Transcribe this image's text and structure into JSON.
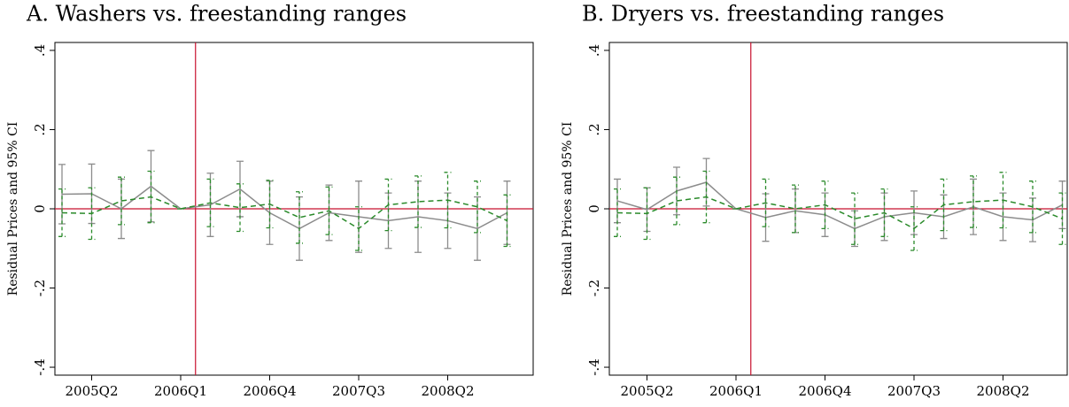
{
  "chart_data": [
    {
      "type": "line",
      "title": "A. Washers vs. freestanding ranges",
      "y_label": "Residual Prices and 95% CI",
      "categories": [
        null,
        "2005Q2",
        null,
        null,
        "2006Q1",
        null,
        null,
        "2006Q4",
        null,
        null,
        "2007Q3",
        null,
        null,
        "2008Q2",
        null,
        null
      ],
      "ylim": [
        -0.42,
        0.42
      ],
      "yticks": [
        {
          "value": -0.4,
          "label": "-.4"
        },
        {
          "value": -0.2,
          "label": "-.2"
        },
        0,
        {
          "value": 0.2,
          "label": ".2"
        },
        {
          "value": 0.4,
          "label": ".4"
        }
      ],
      "series": [
        {
          "color": "#8c8c8c",
          "style": "solid",
          "values": [
            0.037,
            0.038,
            0.0,
            0.057,
            0.0,
            0.01,
            0.05,
            -0.01,
            -0.05,
            -0.01,
            -0.02,
            -0.03,
            -0.02,
            -0.03,
            -0.05,
            -0.01
          ],
          "errors": [
            0.075,
            0.075,
            0.075,
            0.09,
            0.0,
            0.08,
            0.07,
            0.08,
            0.08,
            0.07,
            0.09,
            0.07,
            0.09,
            0.07,
            0.08,
            0.08
          ]
        },
        {
          "color": "#2a8a2a",
          "style": "dashed",
          "values": [
            -0.01,
            -0.012,
            0.02,
            0.03,
            0.0,
            0.015,
            0.003,
            0.012,
            -0.022,
            -0.005,
            -0.05,
            0.01,
            0.018,
            0.022,
            0.005,
            -0.03
          ],
          "errors": [
            0.06,
            0.065,
            0.06,
            0.065,
            0.0,
            0.06,
            0.06,
            0.06,
            0.065,
            0.06,
            0.055,
            0.065,
            0.065,
            0.07,
            0.065,
            0.065
          ]
        }
      ]
    },
    {
      "type": "line",
      "title": "B. Dryers vs. freestanding ranges",
      "y_label": "Residual Prices and 95% CI",
      "categories": [
        null,
        "2005Q2",
        null,
        null,
        "2006Q1",
        null,
        null,
        "2006Q4",
        null,
        null,
        "2007Q3",
        null,
        null,
        "2008Q2",
        null,
        null
      ],
      "ylim": [
        -0.42,
        0.42
      ],
      "yticks": [
        {
          "value": -0.4,
          "label": "-.4"
        },
        {
          "value": -0.2,
          "label": "-.2"
        },
        0,
        {
          "value": 0.2,
          "label": ".2"
        },
        {
          "value": 0.4,
          "label": ".4"
        }
      ],
      "series": [
        {
          "color": "#8c8c8c",
          "style": "solid",
          "values": [
            0.02,
            -0.002,
            0.045,
            0.067,
            0.0,
            -0.022,
            -0.005,
            -0.015,
            -0.05,
            -0.02,
            -0.01,
            -0.02,
            0.005,
            -0.02,
            -0.028,
            0.01
          ],
          "errors": [
            0.055,
            0.055,
            0.06,
            0.06,
            0.0,
            0.06,
            0.055,
            0.055,
            0.045,
            0.06,
            0.055,
            0.055,
            0.07,
            0.06,
            0.055,
            0.06
          ]
        },
        {
          "color": "#2a8a2a",
          "style": "dashed",
          "values": [
            -0.01,
            -0.012,
            0.02,
            0.03,
            0.0,
            0.015,
            0.0,
            0.01,
            -0.025,
            -0.01,
            -0.05,
            0.01,
            0.018,
            0.022,
            0.005,
            -0.025
          ],
          "errors": [
            0.06,
            0.065,
            0.06,
            0.065,
            0.0,
            0.06,
            0.06,
            0.06,
            0.065,
            0.06,
            0.055,
            0.065,
            0.065,
            0.07,
            0.065,
            0.065
          ]
        }
      ]
    }
  ]
}
